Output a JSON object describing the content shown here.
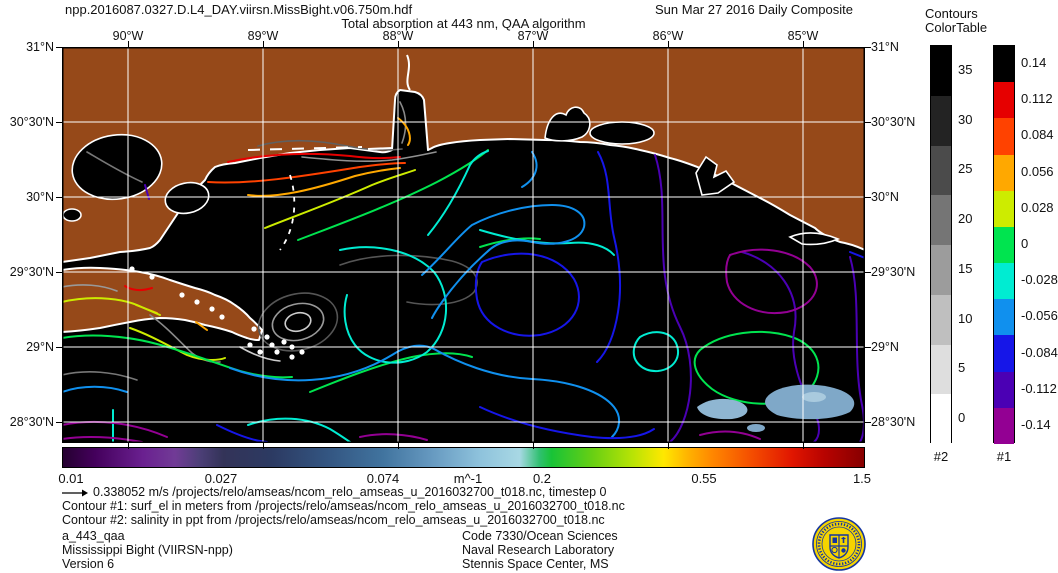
{
  "header": {
    "filename": "npp.2016087.0327.D.L4_DAY.viirsn.MissBight.v06.750m.hdf",
    "date": "Sun Mar 27 2016 Daily Composite",
    "title": "Total absorption at 443 nm, QAA algorithm"
  },
  "axes": {
    "lon_labels": [
      "90°W",
      "89°W",
      "88°W",
      "87°W",
      "86°W",
      "85°W"
    ],
    "lat_labels": [
      "31°N",
      "30°30'N",
      "30°N",
      "29°30'N",
      "29°N",
      "28°30'N"
    ]
  },
  "colorbar_bottom": {
    "tick_labels": [
      "0.01",
      "0.027",
      "0.074",
      "0.2",
      "0.55",
      "1.5"
    ],
    "units_label": "m^-1"
  },
  "contour_legend": {
    "title_line1": "Contours",
    "title_line2": "ColorTable",
    "table2": {
      "name": "#2",
      "labels": [
        "35",
        "30",
        "25",
        "20",
        "15",
        "10",
        "5",
        "0"
      ],
      "colors": [
        "#000000",
        "#232323",
        "#4b4b4b",
        "#757575",
        "#9c9c9c",
        "#bfbfbf",
        "#dedede",
        "#ffffff"
      ]
    },
    "table1": {
      "name": "#1",
      "labels": [
        "0.14",
        "0.112",
        "0.084",
        "0.056",
        "0.028",
        "0",
        "-0.028",
        "-0.056",
        "-0.084",
        "-0.112",
        "-0.14"
      ],
      "colors": [
        "#000000",
        "#e60000",
        "#ff4200",
        "#ffa800",
        "#cdec00",
        "#00e44f",
        "#00ecd2",
        "#1090ee",
        "#1616e8",
        "#4b00b4",
        "#930093"
      ]
    }
  },
  "annotations": {
    "vector_line": "0.338052 m/s /projects/relo/amseas/ncom_relo_amseas_u_2016032700_t018.nc, timestep 0",
    "contour1_line": "Contour #1: surf_el in meters from /projects/relo/amseas/ncom_relo_amseas_u_2016032700_t018.nc",
    "contour2_line": "Contour #2: salinity in ppt from /projects/relo/amseas/ncom_relo_amseas_u_2016032700_t018.nc"
  },
  "footer": {
    "product": "a_443_qaa",
    "region": "Mississippi Bight (VIIRSN-npp)",
    "version": "Version 6",
    "code": "Code 7330/Ocean Sciences",
    "lab": "Naval Research Laboratory",
    "location": "Stennis Space Center, MS"
  },
  "map_colors": {
    "land": "#964919",
    "water": "#000000",
    "coastline": "#ffffff",
    "grid": "#ffffff"
  }
}
